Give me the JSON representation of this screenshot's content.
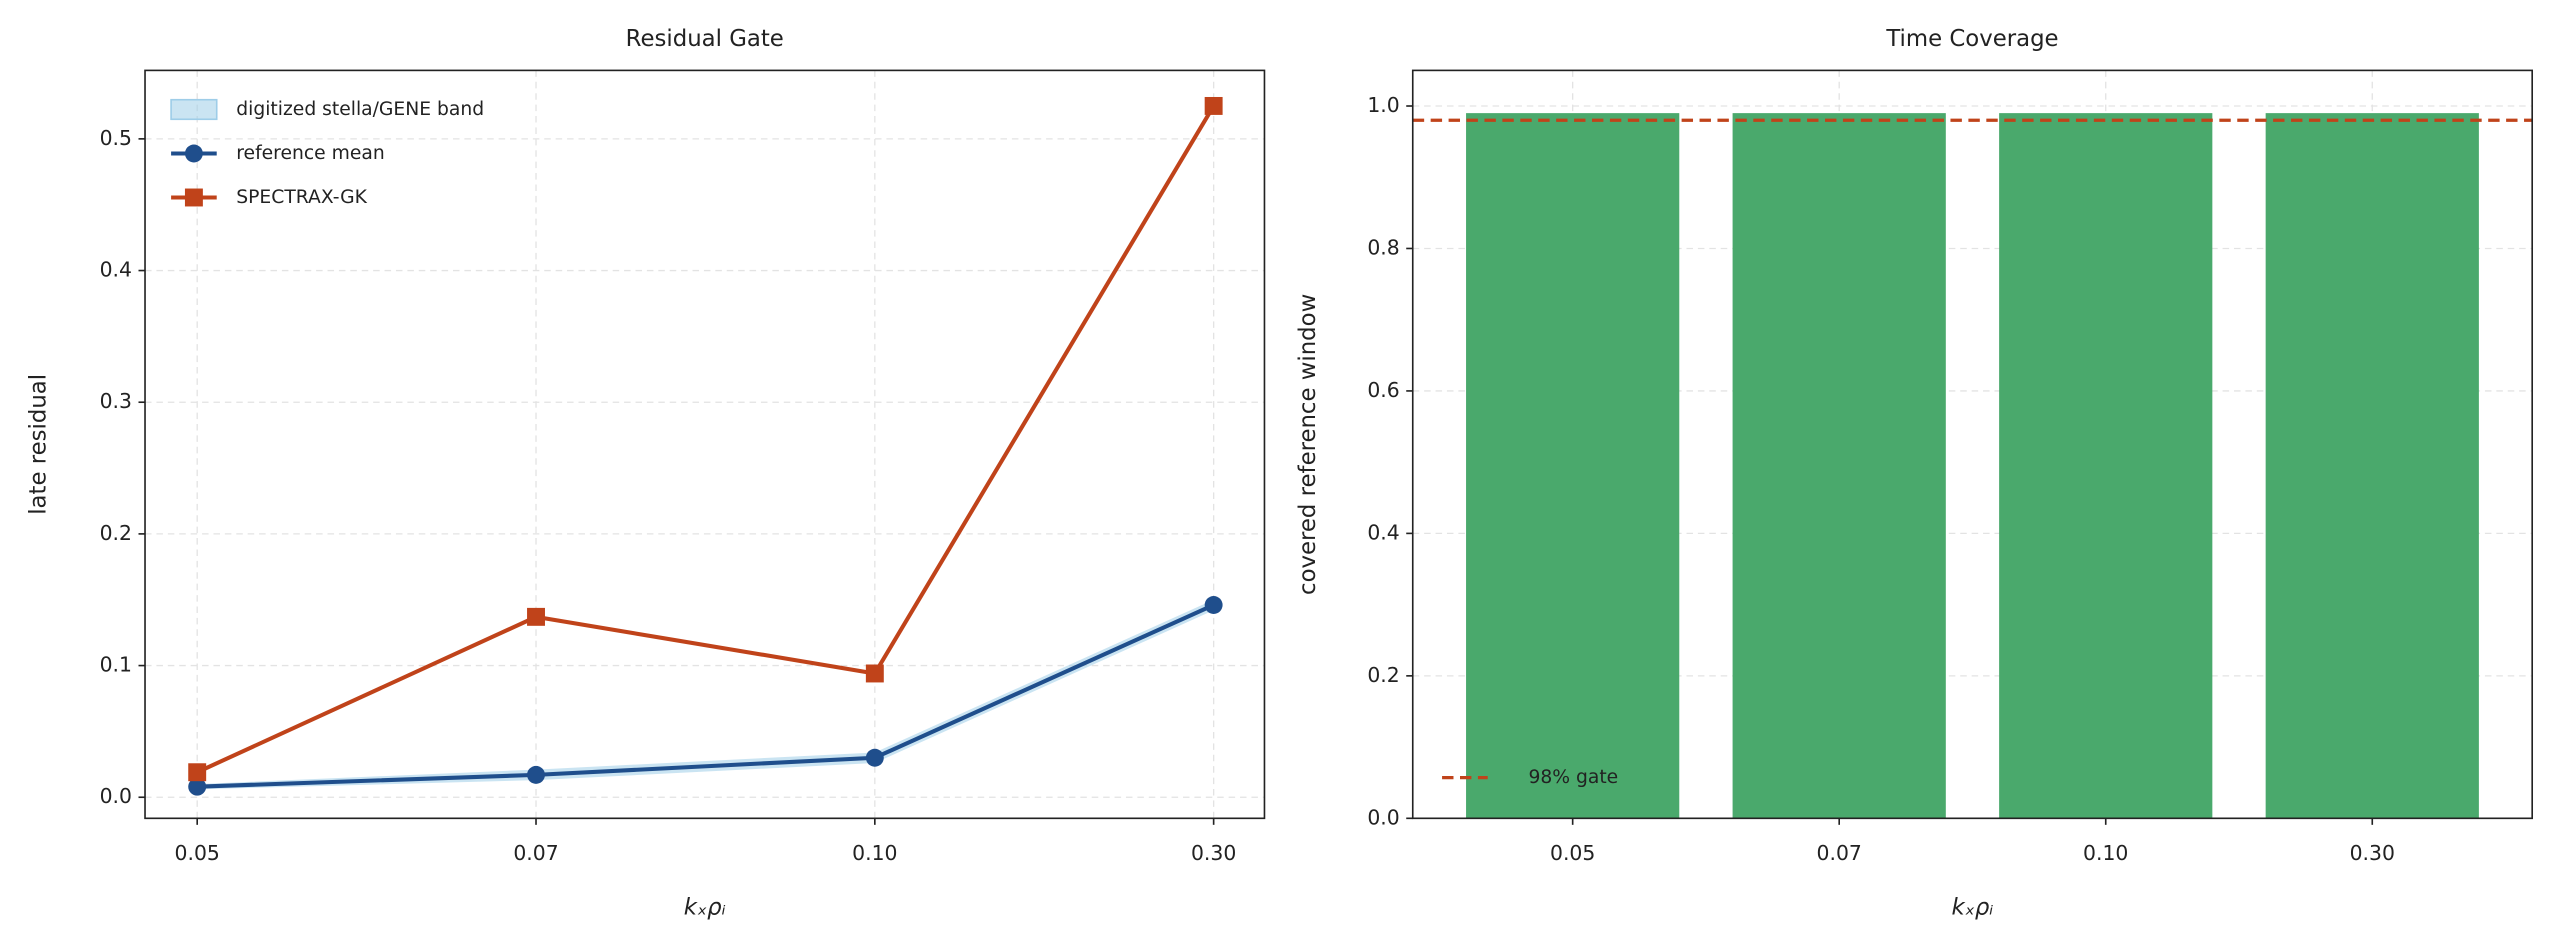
{
  "chart_data": [
    {
      "type": "line",
      "title": "Residual Gate",
      "xlabel": "kₓρᵢ",
      "ylabel": "late residual",
      "categories": [
        "0.05",
        "0.07",
        "0.10",
        "0.30"
      ],
      "band": {
        "name": "digitized stella/GENE band",
        "color": "#9ecde8",
        "lower": [
          0.006,
          0.013,
          0.026,
          0.142
        ],
        "upper": [
          0.01,
          0.021,
          0.034,
          0.15
        ]
      },
      "series": [
        {
          "name": "reference mean",
          "color": "#1f4e8c",
          "marker": "circle",
          "values": [
            0.008,
            0.017,
            0.03,
            0.146
          ]
        },
        {
          "name": "SPECTRAX-GK",
          "color": "#c0431a",
          "marker": "square",
          "values": [
            0.019,
            0.137,
            0.094,
            0.525
          ]
        }
      ],
      "ylim": [
        -0.016,
        0.552
      ],
      "yticks": [
        {
          "value": 0,
          "label": "0.0"
        },
        0.1,
        0.2,
        0.3,
        0.4,
        0.5
      ],
      "grid": true,
      "legend": "upper left"
    },
    {
      "type": "bar",
      "title": "Time Coverage",
      "xlabel": "kₓρᵢ",
      "ylabel": "covered reference window",
      "categories": [
        "0.05",
        "0.07",
        "0.10",
        "0.30"
      ],
      "values": [
        0.99,
        0.99,
        0.99,
        0.99
      ],
      "color": "#4aa96c",
      "hline": {
        "value": 0.98,
        "label": "98% gate",
        "color": "#c0431a"
      },
      "ylim": [
        0,
        1.05
      ],
      "yticks": [
        {
          "value": 0,
          "label": "0.0"
        },
        0.2,
        0.4,
        0.6,
        0.8,
        {
          "value": 1,
          "label": "1.0"
        }
      ],
      "grid": true,
      "legend": "lower left"
    }
  ]
}
